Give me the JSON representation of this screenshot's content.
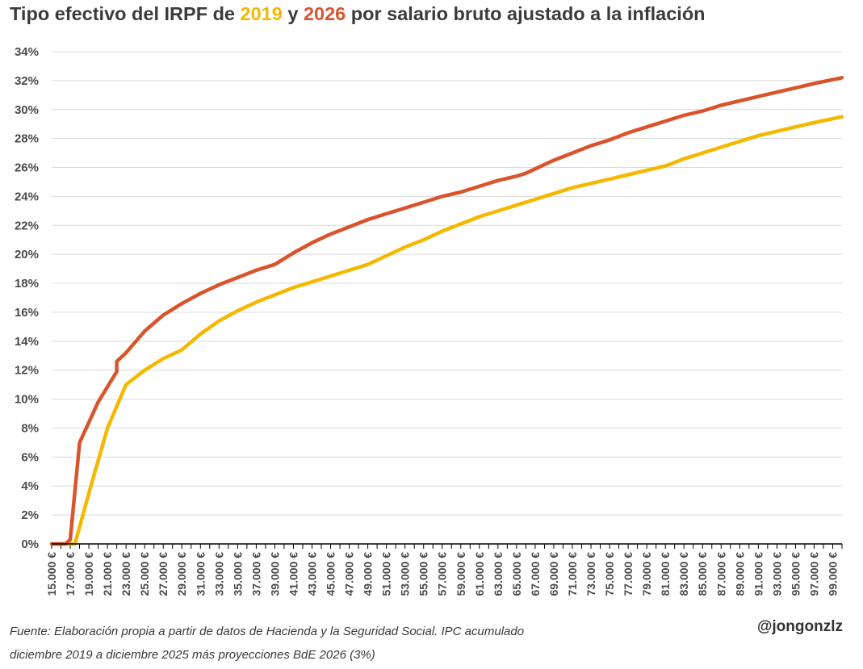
{
  "title": {
    "part1": "Tipo efectivo del IRPF de ",
    "year_a": "2019",
    "part2": " y ",
    "year_b": "2026",
    "part3": " por salario bruto ajustado a la inflación"
  },
  "source": {
    "line1": "Fuente: Elaboración propia a partir de datos de Hacienda y la Seguridad Social. IPC acumulado",
    "line2": "diciembre 2019 a diciembre 2025 más proyecciones BdE 2026 (3%)"
  },
  "handle": "@jongonzlz",
  "colors": {
    "series_2019": "#f5b800",
    "series_2026": "#d9542c",
    "grid": "#d9d9d9",
    "axis": "#000000"
  },
  "chart_data": {
    "type": "line",
    "title": "Tipo efectivo del IRPF de 2019 y 2026 por salario bruto ajustado a la inflación",
    "xlabel": "",
    "ylabel": "",
    "xlim": [
      15000,
      100000
    ],
    "ylim": [
      0,
      34
    ],
    "y_ticks": [
      "0%",
      "2%",
      "4%",
      "6%",
      "8%",
      "10%",
      "12%",
      "14%",
      "16%",
      "18%",
      "20%",
      "22%",
      "24%",
      "26%",
      "28%",
      "30%",
      "32%",
      "34%"
    ],
    "x_ticks": [
      "15.000 €",
      "17.000 €",
      "19.000 €",
      "21.000 €",
      "23.000 €",
      "25.000 €",
      "27.000 €",
      "29.000 €",
      "31.000 €",
      "33.000 €",
      "35.000 €",
      "37.000 €",
      "39.000 €",
      "41.000 €",
      "43.000 €",
      "45.000 €",
      "47.000 €",
      "49.000 €",
      "51.000 €",
      "53.000 €",
      "55.000 €",
      "57.000 €",
      "59.000 €",
      "61.000 €",
      "63.000 €",
      "65.000 €",
      "67.000 €",
      "69.000 €",
      "71.000 €",
      "73.000 €",
      "75.000 €",
      "77.000 €",
      "79.000 €",
      "81.000 €",
      "83.000 €",
      "85.000 €",
      "87.000 €",
      "89.000 €",
      "91.000 €",
      "93.000 €",
      "95.000 €",
      "97.000 €",
      "99.000 €"
    ],
    "grid": true,
    "series": [
      {
        "name": "2019",
        "x": [
          15000,
          17000,
          17500,
          19000,
          21000,
          23000,
          25000,
          27000,
          29000,
          31000,
          33000,
          35000,
          37000,
          39000,
          41000,
          43000,
          45000,
          47000,
          49000,
          51000,
          53000,
          55000,
          57000,
          59000,
          61000,
          63000,
          65000,
          67000,
          69000,
          71000,
          73000,
          75000,
          77000,
          79000,
          81000,
          83000,
          85000,
          87000,
          89000,
          91000,
          93000,
          95000,
          97000,
          100000
        ],
        "y": [
          0,
          0,
          0,
          3.5,
          8.0,
          11.0,
          12.0,
          12.8,
          13.4,
          14.5,
          15.4,
          16.1,
          16.7,
          17.2,
          17.7,
          18.1,
          18.5,
          18.9,
          19.3,
          19.9,
          20.5,
          21.0,
          21.6,
          22.1,
          22.6,
          23.0,
          23.4,
          23.8,
          24.2,
          24.6,
          24.9,
          25.2,
          25.5,
          25.8,
          26.1,
          26.6,
          27.0,
          27.4,
          27.8,
          28.2,
          28.5,
          28.8,
          29.1,
          29.5
        ]
      },
      {
        "name": "2026",
        "x": [
          15000,
          16500,
          17000,
          18000,
          20000,
          22000,
          22000,
          23000,
          25000,
          27000,
          29000,
          31000,
          33000,
          35000,
          37000,
          39000,
          41000,
          43000,
          45000,
          47000,
          49000,
          51000,
          53000,
          55000,
          57000,
          59000,
          61000,
          63000,
          65000,
          66000,
          67000,
          69000,
          71000,
          73000,
          75000,
          77000,
          79000,
          81000,
          83000,
          85000,
          87000,
          89000,
          91000,
          93000,
          95000,
          97000,
          100000
        ],
        "y": [
          0,
          0,
          0.3,
          7.0,
          9.8,
          11.9,
          12.6,
          13.2,
          14.7,
          15.8,
          16.6,
          17.3,
          17.9,
          18.4,
          18.9,
          19.3,
          20.1,
          20.8,
          21.4,
          21.9,
          22.4,
          22.8,
          23.2,
          23.6,
          24.0,
          24.3,
          24.7,
          25.1,
          25.4,
          25.6,
          25.9,
          26.5,
          27.0,
          27.5,
          27.9,
          28.4,
          28.8,
          29.2,
          29.6,
          29.9,
          30.3,
          30.6,
          30.9,
          31.2,
          31.5,
          31.8,
          32.2
        ]
      }
    ]
  }
}
